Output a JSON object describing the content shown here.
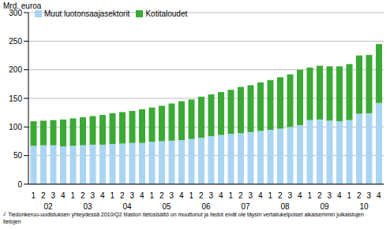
{
  "chart_data": {
    "type": "bar",
    "stacked": true,
    "y_label": "Mrd. euroa",
    "legend": "top-left",
    "grid": true,
    "categories": [
      "1",
      "2",
      "3",
      "4",
      "1",
      "2",
      "3",
      "4",
      "1",
      "2",
      "3",
      "4",
      "1",
      "2",
      "3",
      "4",
      "1",
      "2",
      "3",
      "4",
      "1",
      "2",
      "3",
      "4",
      "1",
      "2",
      "3",
      "4",
      "1",
      "2",
      "3",
      "4",
      "1",
      "2",
      "3",
      "4"
    ],
    "years": [
      "02",
      "03",
      "04",
      "05",
      "06",
      "07",
      "08",
      "09",
      "10"
    ],
    "ylim": [
      0,
      300
    ],
    "yticks": [
      0,
      50,
      100,
      150,
      200,
      250,
      300
    ],
    "series": [
      {
        "name": "Muut luotonsaajasektorit",
        "color": "#a9d5f2",
        "values": [
          67,
          68,
          68,
          66,
          67,
          68,
          69,
          69,
          70,
          71,
          72,
          72,
          74,
          75,
          76,
          77,
          79,
          81,
          84,
          86,
          88,
          89,
          91,
          93,
          95,
          97,
          100,
          103,
          112,
          113,
          111,
          110,
          112,
          123,
          124,
          142
        ]
      },
      {
        "name": "Kotitaloudet",
        "color": "#3aaa35",
        "values": [
          43,
          43,
          44,
          47,
          48,
          49,
          50,
          52,
          54,
          55,
          56,
          59,
          60,
          62,
          65,
          68,
          69,
          72,
          73,
          75,
          77,
          81,
          82,
          85,
          87,
          90,
          92,
          97,
          92,
          94,
          95,
          96,
          98,
          102,
          102,
          103
        ]
      }
    ],
    "footnote": "¹⁾ Tiedonkeruu-uudistuksen yhteydessä 2010/Q2 tilaston tietosisältö on muuttunut ja tiedot eivät ole täysin vertailukelpoiset aikaisemmin julkaistujen tietojen"
  }
}
